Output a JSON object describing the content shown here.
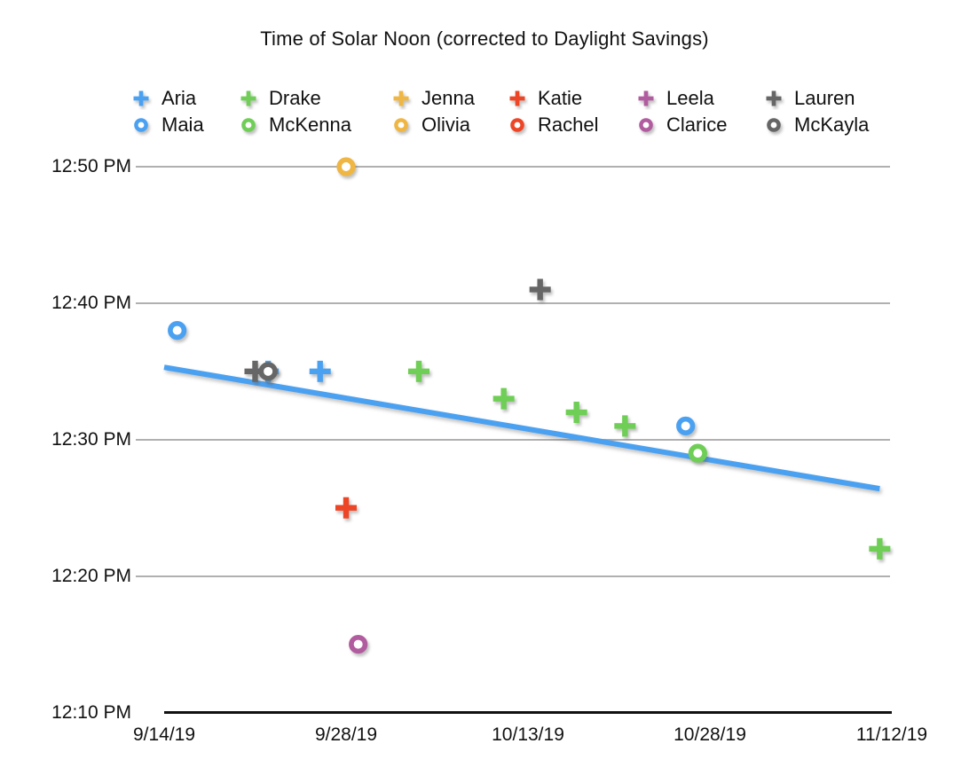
{
  "colors": {
    "blue": "#4BA1F1",
    "green": "#6FCE55",
    "yellow": "#EFB643",
    "red": "#ED4627",
    "purple": "#B15C9E",
    "gray": "#666666",
    "trendline": "#4BA1F1",
    "gridline": "#B0B0B0",
    "axis": "#111111",
    "text": "#111111"
  },
  "legend": {
    "rows": [
      [
        {
          "label": "Aria",
          "marker": "plus",
          "color_key": "blue"
        },
        {
          "label": "Drake",
          "marker": "plus",
          "color_key": "green"
        },
        {
          "label": "Jenna",
          "marker": "plus",
          "color_key": "yellow"
        },
        {
          "label": "Katie",
          "marker": "plus",
          "color_key": "red"
        },
        {
          "label": "Leela",
          "marker": "plus",
          "color_key": "purple"
        },
        {
          "label": "Lauren",
          "marker": "plus",
          "color_key": "gray"
        }
      ],
      [
        {
          "label": "Maia",
          "marker": "circle",
          "color_key": "blue"
        },
        {
          "label": "McKenna",
          "marker": "circle",
          "color_key": "green"
        },
        {
          "label": "Olivia",
          "marker": "circle",
          "color_key": "yellow"
        },
        {
          "label": "Rachel",
          "marker": "circle",
          "color_key": "red"
        },
        {
          "label": "Clarice",
          "marker": "circle",
          "color_key": "purple"
        },
        {
          "label": "McKayla",
          "marker": "circle",
          "color_key": "gray"
        }
      ]
    ]
  },
  "chart_data": {
    "type": "scatter",
    "title": "Time of Solar Noon (corrected to Daylight Savings)",
    "xlabel": "",
    "ylabel": "",
    "x_axis": {
      "tick_labels": [
        "9/14/19",
        "9/28/19",
        "10/13/19",
        "10/28/19",
        "11/12/19"
      ]
    },
    "y_axis": {
      "tick_labels": [
        "12:50 PM",
        "12:40 PM",
        "12:30 PM",
        "12:20 PM",
        "12:10 PM"
      ],
      "range": [
        "12:10 PM",
        "12:50 PM"
      ],
      "grid": true
    },
    "legend_position": "top",
    "series": [
      {
        "name": "Aria",
        "marker": "plus",
        "color_key": "blue",
        "points": [
          {
            "date": "9/22/19",
            "time": "12:35 PM"
          },
          {
            "date": "9/26/19",
            "time": "12:35 PM"
          }
        ]
      },
      {
        "name": "Drake",
        "marker": "plus",
        "color_key": "green",
        "points": [
          {
            "date": "10/4/19",
            "time": "12:35 PM"
          },
          {
            "date": "10/11/19",
            "time": "12:33 PM"
          },
          {
            "date": "10/17/19",
            "time": "12:32 PM"
          },
          {
            "date": "10/21/19",
            "time": "12:31 PM"
          },
          {
            "date": "11/11/19",
            "time": "12:22 PM"
          }
        ]
      },
      {
        "name": "Jenna",
        "marker": "plus",
        "color_key": "yellow",
        "points": []
      },
      {
        "name": "Katie",
        "marker": "plus",
        "color_key": "red",
        "points": [
          {
            "date": "9/28/19",
            "time": "12:25 PM"
          }
        ]
      },
      {
        "name": "Leela",
        "marker": "plus",
        "color_key": "purple",
        "points": []
      },
      {
        "name": "Lauren",
        "marker": "plus",
        "color_key": "gray",
        "points": [
          {
            "date": "9/21/19",
            "time": "12:35 PM"
          },
          {
            "date": "10/14/19",
            "time": "12:41 PM"
          }
        ]
      },
      {
        "name": "Maia",
        "marker": "circle",
        "color_key": "blue",
        "points": [
          {
            "date": "9/15/19",
            "time": "12:38 PM"
          },
          {
            "date": "10/26/19",
            "time": "12:31 PM"
          }
        ]
      },
      {
        "name": "McKenna",
        "marker": "circle",
        "color_key": "green",
        "points": [
          {
            "date": "10/27/19",
            "time": "12:29 PM"
          }
        ]
      },
      {
        "name": "Olivia",
        "marker": "circle",
        "color_key": "yellow",
        "points": [
          {
            "date": "9/28/19",
            "time": "12:50 PM"
          }
        ]
      },
      {
        "name": "Rachel",
        "marker": "circle",
        "color_key": "red",
        "points": []
      },
      {
        "name": "Clarice",
        "marker": "circle",
        "color_key": "purple",
        "points": [
          {
            "date": "9/29/19",
            "time": "12:15 PM"
          }
        ]
      },
      {
        "name": "McKayla",
        "marker": "circle",
        "color_key": "gray",
        "points": [
          {
            "date": "9/22/19",
            "time": "12:35 PM"
          }
        ]
      }
    ],
    "trendline": {
      "color_key": "trendline",
      "start": {
        "date": "9/14/19",
        "minutes_after_noon": 35.3
      },
      "end": {
        "date": "11/11/19",
        "minutes_after_noon": 26.4
      }
    }
  }
}
